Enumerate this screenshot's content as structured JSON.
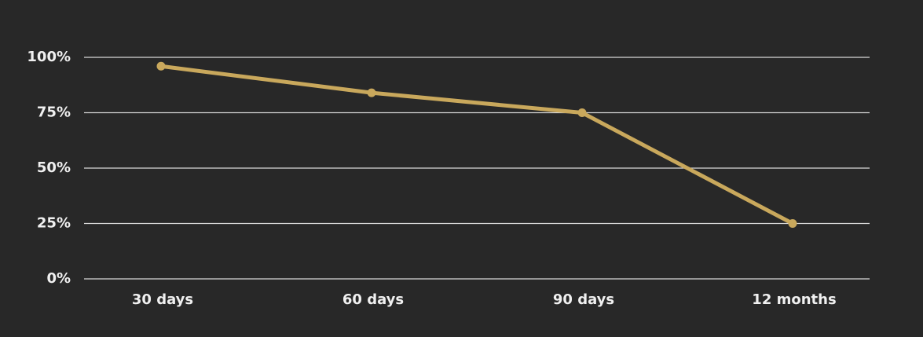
{
  "chart_data": {
    "type": "line",
    "categories": [
      "30 days",
      "60 days",
      "90 days",
      "12 months"
    ],
    "series": [
      {
        "color": "#c9a85c",
        "values": [
          96,
          84,
          75,
          25
        ]
      }
    ],
    "ylim": [
      0,
      100
    ],
    "yticks": [
      {
        "value": 0,
        "label": "0%"
      },
      {
        "value": 25,
        "label": "25%"
      },
      {
        "value": 50,
        "label": "50%"
      },
      {
        "value": 75,
        "label": "75%"
      },
      {
        "value": 100,
        "label": "100%"
      }
    ],
    "grid": true
  }
}
